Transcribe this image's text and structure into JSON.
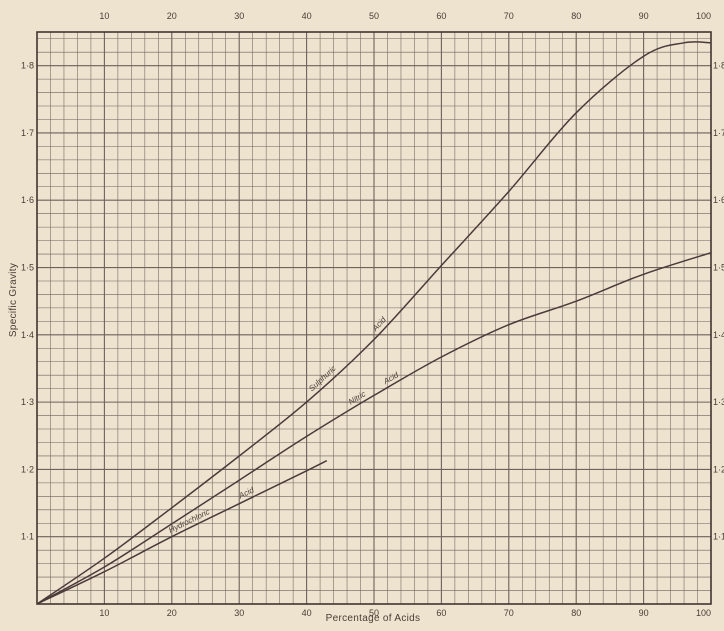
{
  "chart_data": {
    "type": "line",
    "xlabel": "Percentage of Acids",
    "ylabel": "Specific Gravity",
    "xlim": [
      0,
      100
    ],
    "ylim": [
      1.0,
      1.85
    ],
    "x_ticks": [
      "10",
      "20",
      "30",
      "40",
      "50",
      "60",
      "70",
      "80",
      "90",
      "100"
    ],
    "top_ticks": [
      "10",
      "20",
      "30",
      "40",
      "50",
      "60",
      "70",
      "80",
      "90",
      "100"
    ],
    "y_ticks": [
      "1·1",
      "1·2",
      "1·3",
      "1·4",
      "1·5",
      "1·6",
      "1·7",
      "1·8"
    ],
    "grid": true,
    "series": [
      {
        "name": "Sulphuric Acid",
        "label_parts": [
          "Sulphuric",
          "Acid"
        ],
        "color": "#4b3a3a",
        "points": [
          [
            0,
            1.0
          ],
          [
            10,
            1.068
          ],
          [
            20,
            1.143
          ],
          [
            30,
            1.22
          ],
          [
            40,
            1.3
          ],
          [
            50,
            1.393
          ],
          [
            60,
            1.503
          ],
          [
            70,
            1.613
          ],
          [
            80,
            1.73
          ],
          [
            90,
            1.814
          ],
          [
            96,
            1.834
          ],
          [
            100,
            1.834
          ]
        ]
      },
      {
        "name": "Nitric Acid",
        "label_parts": [
          "Nitric",
          "Acid"
        ],
        "color": "#4b3a3a",
        "points": [
          [
            0,
            1.0
          ],
          [
            10,
            1.055
          ],
          [
            20,
            1.119
          ],
          [
            30,
            1.184
          ],
          [
            40,
            1.249
          ],
          [
            50,
            1.31
          ],
          [
            60,
            1.367
          ],
          [
            70,
            1.415
          ],
          [
            80,
            1.45
          ],
          [
            90,
            1.49
          ],
          [
            100,
            1.522
          ]
        ]
      },
      {
        "name": "Hydrochloric Acid",
        "label_parts": [
          "Hydrochloric",
          "Acid"
        ],
        "color": "#4b3a3a",
        "points": [
          [
            0,
            1.0
          ],
          [
            10,
            1.048
          ],
          [
            20,
            1.1
          ],
          [
            30,
            1.149
          ],
          [
            40,
            1.198
          ],
          [
            43,
            1.213
          ]
        ]
      }
    ]
  }
}
